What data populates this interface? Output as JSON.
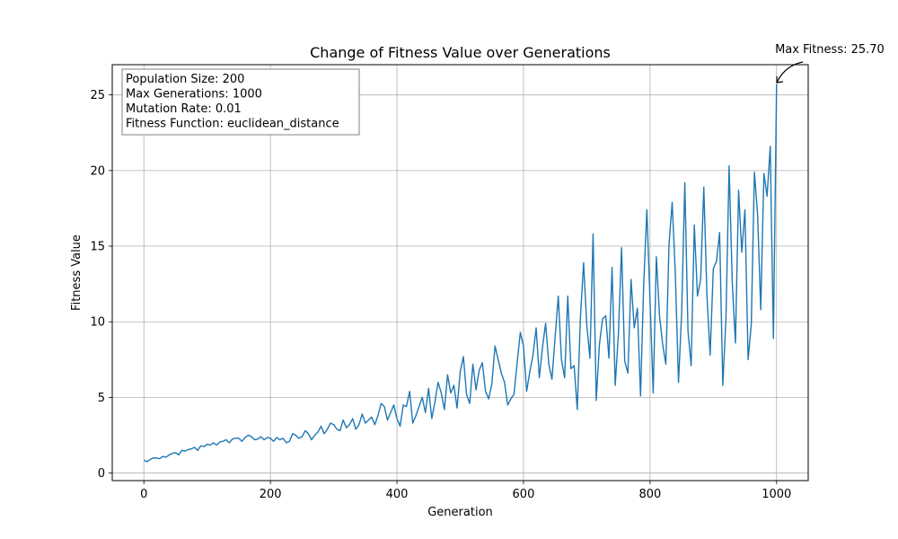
{
  "chart_data": {
    "type": "line",
    "title": "Change of Fitness Value over Generations",
    "xlabel": "Generation",
    "ylabel": "Fitness Value",
    "xlim": [
      -50,
      1050
    ],
    "ylim": [
      -0.5,
      27
    ],
    "x_ticks": [
      0,
      200,
      400,
      600,
      800,
      1000
    ],
    "y_ticks": [
      0,
      5,
      10,
      15,
      20,
      25
    ],
    "grid": true,
    "line_color": "#1f77b4",
    "info_box": {
      "lines": [
        "Population Size: 200",
        "Max Generations: 1000",
        "Mutation Rate: 0.01",
        "Fitness Function: euclidean_distance"
      ],
      "placement": "top-left"
    },
    "annotation": {
      "text": "Max Fitness: 25.70",
      "x": 999,
      "y": 25.7
    },
    "series": [
      {
        "x_start": 0,
        "x_step": 10,
        "values": [
          0.85,
          0.9,
          1.0,
          1.1,
          1.2,
          1.35,
          1.5,
          1.55,
          1.7,
          1.8,
          1.9,
          2.0,
          2.05,
          2.2,
          2.25,
          2.3,
          2.35,
          2.4,
          2.25,
          2.2,
          2.3,
          2.35,
          2.3,
          2.1,
          2.5,
          2.4,
          2.6,
          2.5,
          3.1,
          2.9,
          3.2,
          2.8,
          3.0,
          3.6,
          3.2,
          3.3,
          3.7,
          3.8,
          4.4,
          4.0,
          3.6,
          4.5,
          5.4,
          3.8,
          5.0,
          5.6,
          4.7,
          5.3,
          6.5,
          5.8,
          6.7,
          5.2,
          7.2,
          6.8,
          5.4,
          5.9,
          7.5,
          6.0,
          4.9,
          7.3,
          8.4,
          6.7,
          9.6,
          8.3,
          7.2,
          9.0,
          7.5,
          11.7,
          7.1,
          10.3,
          9.8,
          15.8,
          8.5,
          10.4,
          13.6,
          9.2,
          7.4,
          12.8,
          10.9,
          12.5,
          11.4,
          14.3,
          8.5,
          15.1,
          13.2,
          10.6,
          9.4,
          16.4,
          12.8,
          11.7,
          13.5,
          15.9,
          10.2,
          12.6,
          18.7,
          17.4,
          9.8,
          17.1,
          19.8,
          21.6,
          25.7
        ]
      },
      {
        "x_start": 5,
        "x_step": 10,
        "values": [
          0.75,
          1.0,
          0.95,
          1.05,
          1.3,
          1.2,
          1.45,
          1.6,
          1.5,
          1.75,
          1.85,
          1.85,
          2.1,
          2.0,
          2.3,
          2.1,
          2.5,
          2.2,
          2.4,
          2.35,
          2.1,
          2.2,
          2.0,
          2.6,
          2.3,
          2.8,
          2.2,
          2.7,
          2.6,
          3.3,
          2.9,
          3.5,
          3.2,
          2.9,
          3.9,
          3.5,
          3.2,
          4.6,
          3.5,
          4.5,
          3.1,
          4.4,
          3.3,
          4.4,
          4.0,
          3.6,
          6.0,
          4.2,
          5.3,
          4.3,
          7.7,
          4.6,
          5.5,
          7.3,
          4.9,
          8.4,
          6.6,
          4.5,
          5.2,
          9.3,
          5.4,
          7.8,
          6.3,
          9.9,
          6.2,
          11.7,
          6.3,
          6.9,
          4.2,
          13.9,
          7.6,
          4.8,
          10.2,
          7.6,
          5.8,
          14.9,
          6.6,
          9.6,
          5.1,
          17.4,
          5.3,
          10.4,
          7.2,
          17.9,
          6.0,
          19.2,
          7.1,
          11.7,
          18.9,
          7.8,
          14.0,
          5.8,
          20.3,
          8.6,
          14.6,
          7.5,
          19.9,
          10.8,
          18.3,
          8.9
        ]
      }
    ]
  }
}
